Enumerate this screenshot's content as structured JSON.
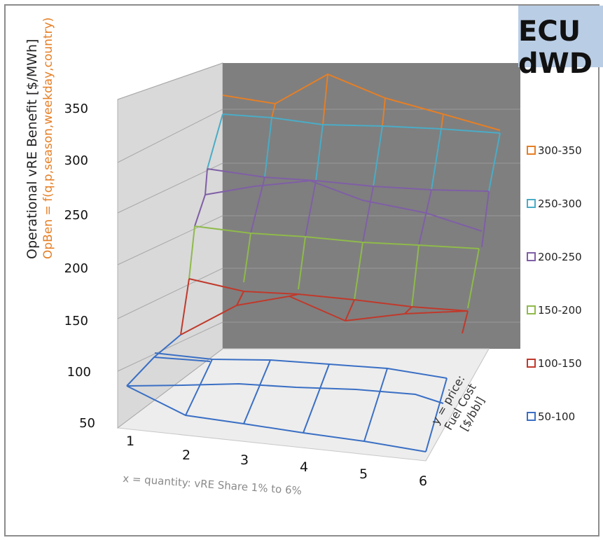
{
  "badge": {
    "line1": "ECU",
    "line2": "dWD"
  },
  "axes": {
    "z_title": "Operational vRE Benefit  [$/MWh]",
    "z_subtitle": "OpBen = f(q,p,season,weekday,country)",
    "x_title": "x = quantity: vRE Share 1% to 6%",
    "y_title_lines": [
      "y = price:",
      "Fuel Cost",
      "[$/bbl]"
    ],
    "z_ticks": [
      "50",
      "100",
      "150",
      "200",
      "250",
      "300",
      "350"
    ],
    "x_ticks": [
      "1",
      "2",
      "3",
      "4",
      "5",
      "6"
    ]
  },
  "legend": [
    {
      "label": "300-350",
      "color": "#e57f26"
    },
    {
      "label": "250-300",
      "color": "#4aacc6"
    },
    {
      "label": "200-250",
      "color": "#7f5fa6"
    },
    {
      "label": "150-200",
      "color": "#8fba4a"
    },
    {
      "label": "100-150",
      "color": "#c0392b"
    },
    {
      "label": "50-100",
      "color": "#3a6fc4"
    }
  ],
  "colors": {
    "z_subtitle": "#e57f26",
    "x_title": "#8a8a8a",
    "back_wall": "#7f7f7f",
    "side_wall": "#d9d9d9",
    "floor": "#ececec"
  },
  "chart_data": {
    "type": "surface",
    "x": [
      1,
      2,
      3,
      4,
      5,
      6
    ],
    "zlim": [
      50,
      350
    ],
    "contour_bands": [
      "300-350",
      "250-300",
      "200-250",
      "150-200",
      "100-150",
      "50-100"
    ]
  }
}
